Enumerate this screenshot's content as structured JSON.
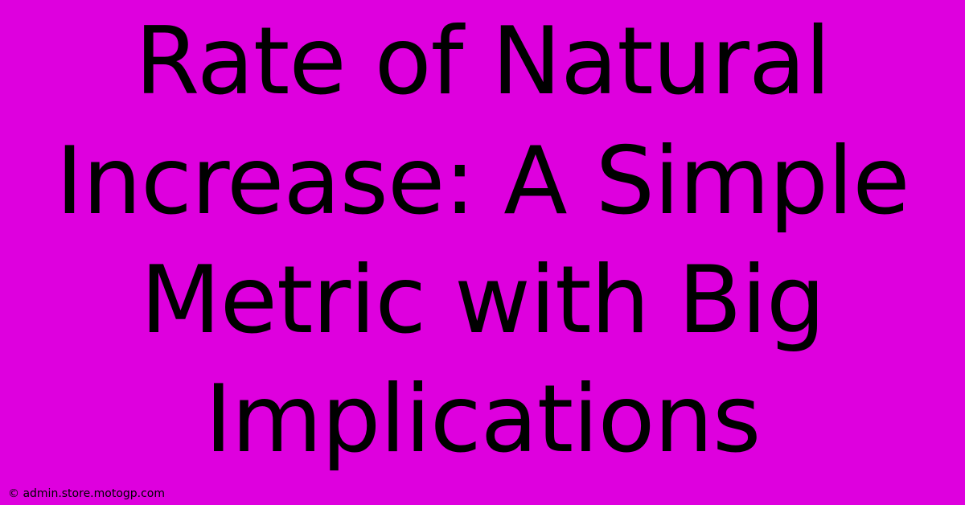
{
  "background_color": "#de00de",
  "title": {
    "text": "Rate of Natural Increase:  A Simple Metric with Big Implications",
    "color": "#000000",
    "fontsize": 116,
    "font_weight": 400,
    "line_height": 1.28
  },
  "footer": {
    "text": "© admin.store.motogp.com",
    "color": "#000000",
    "fontsize": 14
  }
}
